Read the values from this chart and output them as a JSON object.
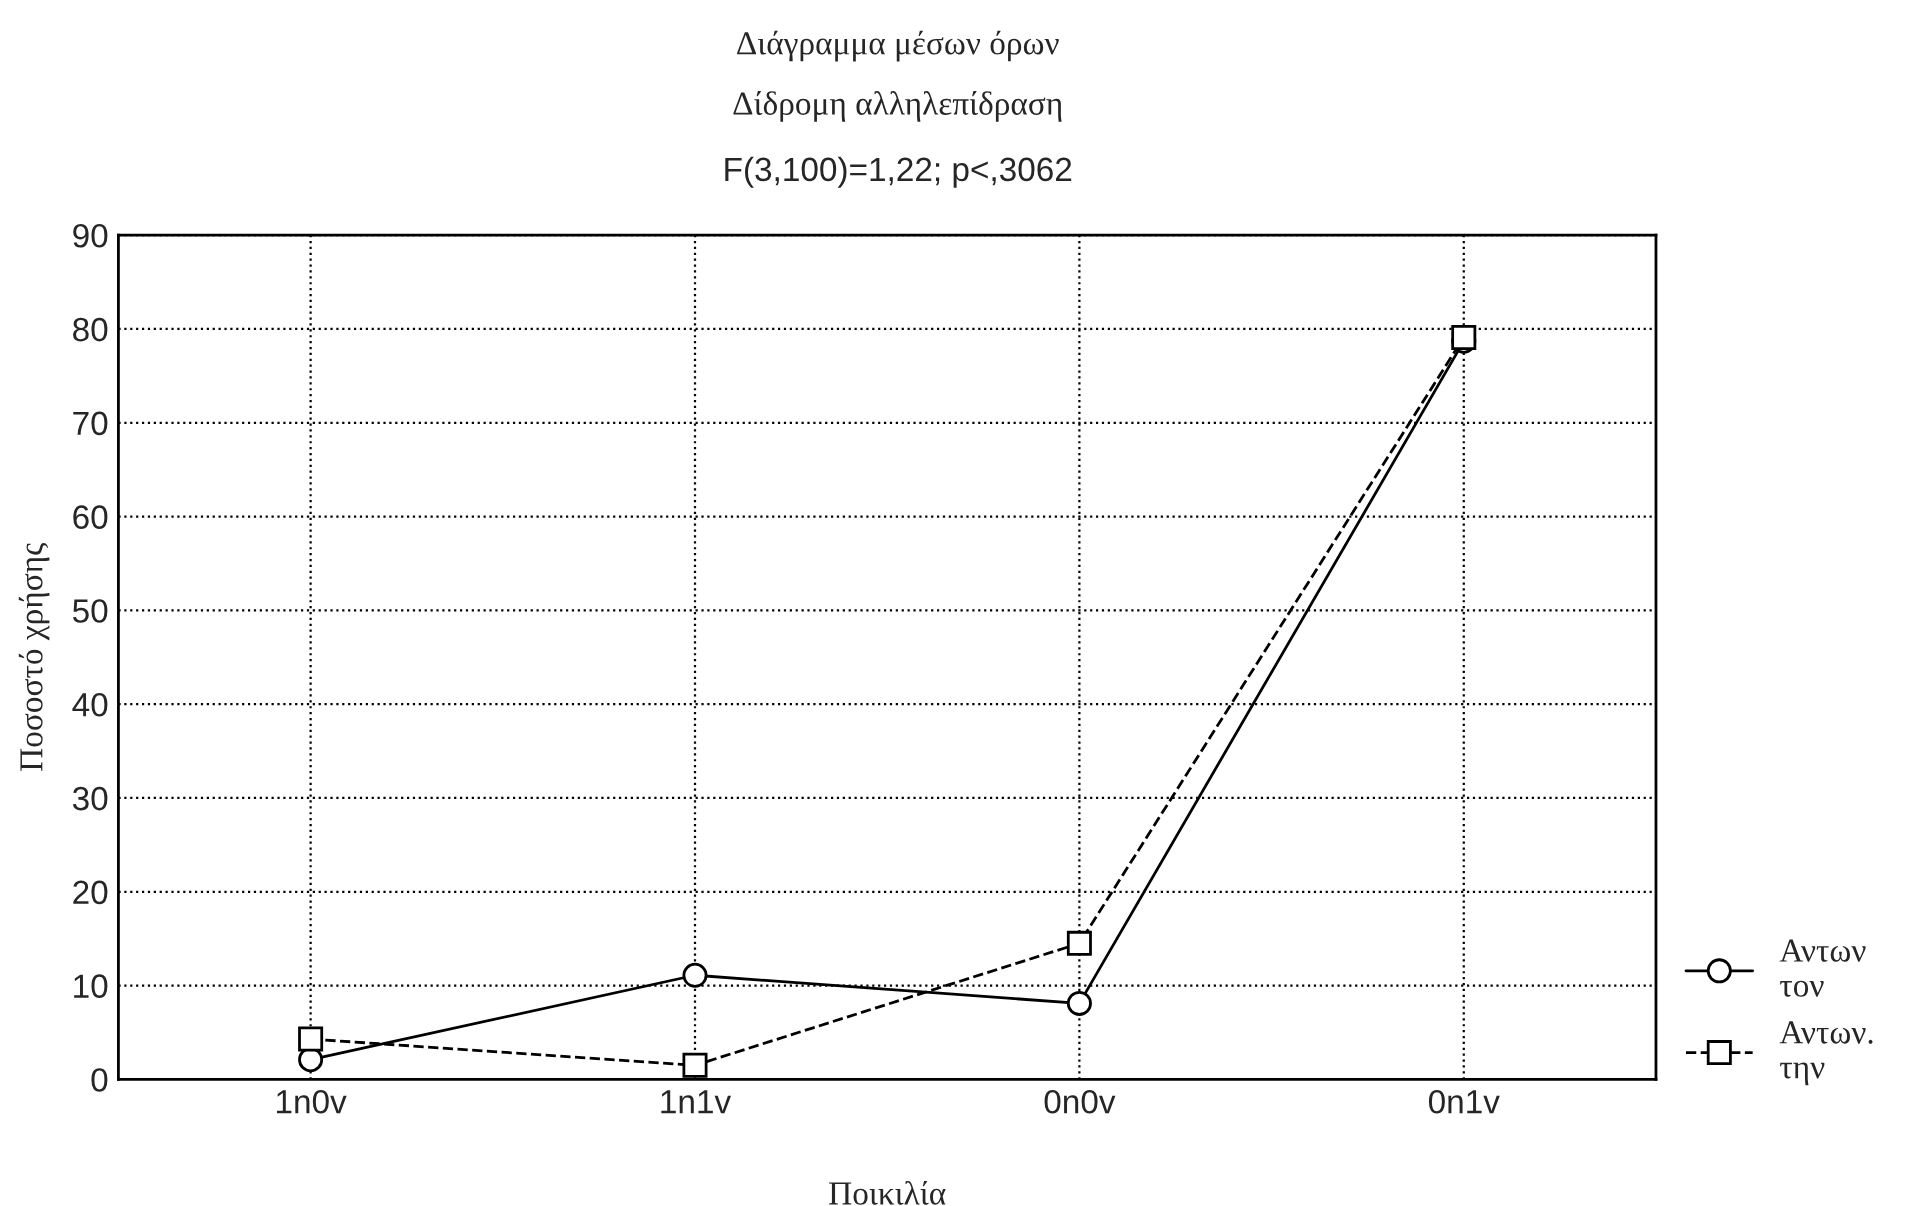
{
  "chart_data": {
    "type": "line",
    "title": "Διάγραμμα μέσων όρων",
    "subtitle": "Δίδρομη αλληλεπίδραση",
    "annotations": [
      "F(3,100)=1,22; p<,3062"
    ],
    "xlabel": "Ποικιλία",
    "ylabel": "Ποσοστό χρήσης",
    "categories": [
      "1n0v",
      "1n1v",
      "0n0v",
      "0n1v"
    ],
    "series": [
      {
        "name": "Αντων τον",
        "color": "#000000",
        "values": [
          2.1,
          11.1,
          8.1,
          78.7
        ],
        "marker": "circle",
        "line_style": "solid"
      },
      {
        "name": "Αντων. την",
        "color": "#000000",
        "values": [
          4.3,
          1.5,
          14.5,
          79.1
        ],
        "marker": "square",
        "line_style": "dashed"
      }
    ],
    "ylim": [
      0,
      90
    ],
    "yticks": [
      0,
      10,
      20,
      30,
      40,
      50,
      60,
      70,
      80,
      90
    ],
    "grid": true,
    "legend": "right"
  }
}
